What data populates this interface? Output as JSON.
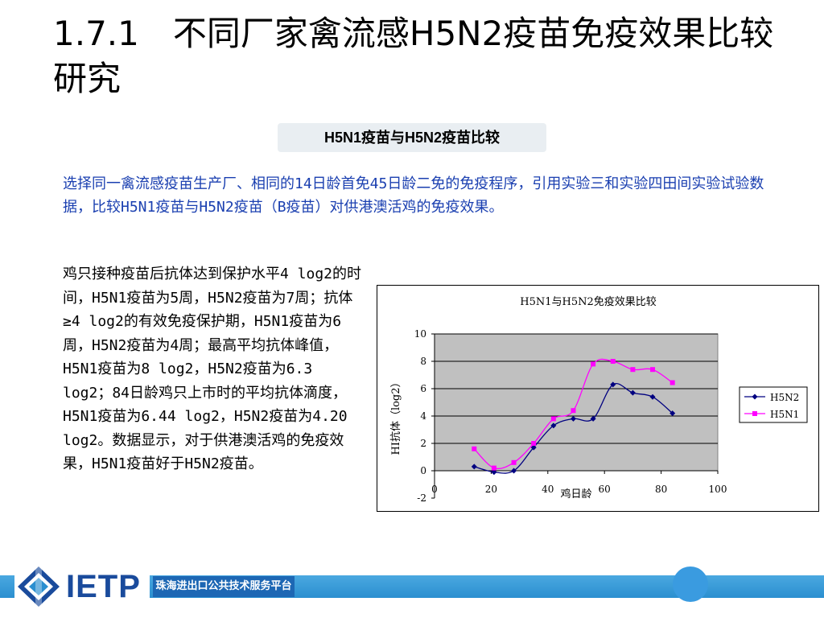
{
  "slide": {
    "title": "1.7.1　不同厂家禽流感H5N2疫苗免疫效果比较研究",
    "pill_label": "H5N1疫苗与H5N2疫苗比较",
    "intro": "选择同一禽流感疫苗生产厂、相同的14日龄首免45日龄二免的免疫程序，引用实验三和实验四田间实验试验数据，比较H5N1疫苗与H5N2疫苗（B疫苗）对供港澳活鸡的免疫效果。",
    "body": "鸡只接种疫苗后抗体达到保护水平4 log2的时间，H5N1疫苗为5周，H5N2疫苗为7周；抗体≥4 log2的有效免疫保护期，H5N1疫苗为6周，H5N2疫苗为4周；最高平均抗体峰值，H5N1疫苗为8 log2，H5N2疫苗为6.3 log2；84日龄鸡只上市时的平均抗体滴度，H5N1疫苗为6.44 log2，H5N2疫苗为4.20 log2。数据显示，对于供港澳活鸡的免疫效果，H5N1疫苗好于H5N2疫苗。"
  },
  "footer": {
    "logo_text": "IETP",
    "label": "珠海进出口公共技术服务平台"
  },
  "colors": {
    "h5n2": "#000080",
    "h5n1": "#ff00ff",
    "plot_bg": "#c0c0c0"
  },
  "chart_data": {
    "type": "line",
    "title": "H5N1与H5N2免疫效果比较",
    "xlabel": "鸡日龄",
    "ylabel": "HI抗体（log2）",
    "xlim": [
      0,
      100
    ],
    "ylim": [
      -2,
      10
    ],
    "x_ticks": [
      0,
      20,
      40,
      60,
      80,
      100
    ],
    "y_ticks": [
      -2,
      0,
      2,
      4,
      6,
      8,
      10
    ],
    "grid": "horizontal",
    "legend_position": "right",
    "series": [
      {
        "name": "H5N2",
        "marker": "diamond",
        "x": [
          14,
          21,
          28,
          35,
          42,
          49,
          56,
          63,
          70,
          77,
          84
        ],
        "y": [
          0.3,
          -0.1,
          0.0,
          1.7,
          3.3,
          3.8,
          3.8,
          6.3,
          5.7,
          5.4,
          4.2
        ]
      },
      {
        "name": "H5N1",
        "marker": "square",
        "x": [
          14,
          21,
          28,
          35,
          42,
          49,
          56,
          63,
          70,
          77,
          84
        ],
        "y": [
          1.6,
          0.2,
          0.6,
          2.0,
          3.8,
          4.4,
          7.8,
          8.0,
          7.4,
          7.4,
          6.44
        ]
      }
    ]
  }
}
